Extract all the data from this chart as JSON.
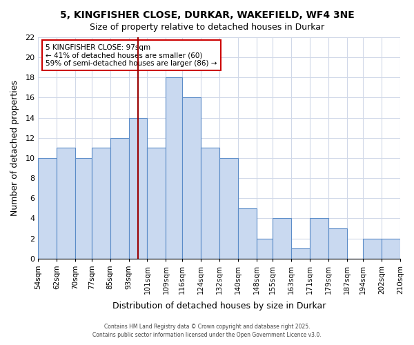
{
  "title_line1": "5, KINGFISHER CLOSE, DURKAR, WAKEFIELD, WF4 3NE",
  "title_line2": "Size of property relative to detached houses in Durkar",
  "xlabel": "Distribution of detached houses by size in Durkar",
  "ylabel": "Number of detached properties",
  "bin_labels": [
    "54sqm",
    "62sqm",
    "70sqm",
    "77sqm",
    "85sqm",
    "93sqm",
    "101sqm",
    "109sqm",
    "116sqm",
    "124sqm",
    "132sqm",
    "140sqm",
    "148sqm",
    "155sqm",
    "163sqm",
    "171sqm",
    "179sqm",
    "187sqm",
    "194sqm",
    "202sqm",
    "210sqm"
  ],
  "bin_edges": [
    54,
    62,
    70,
    77,
    85,
    93,
    101,
    109,
    116,
    124,
    132,
    140,
    148,
    155,
    163,
    171,
    179,
    187,
    194,
    202,
    210
  ],
  "bar_heights": [
    10,
    11,
    10,
    11,
    12,
    14,
    11,
    18,
    16,
    11,
    10,
    5,
    2,
    4,
    1,
    4,
    3,
    0,
    2,
    2
  ],
  "bar_color": "#c9d9f0",
  "bar_edge_color": "#5b8cc8",
  "grid_color": "#d0d8e8",
  "vline_x": 97,
  "vline_color": "#990000",
  "annotation_title": "5 KINGFISHER CLOSE: 97sqm",
  "annotation_line2": "← 41% of detached houses are smaller (60)",
  "annotation_line3": "59% of semi-detached houses are larger (86) →",
  "annotation_box_edge": "#cc0000",
  "ylim": [
    0,
    22
  ],
  "yticks": [
    0,
    2,
    4,
    6,
    8,
    10,
    12,
    14,
    16,
    18,
    20,
    22
  ],
  "footer1": "Contains HM Land Registry data © Crown copyright and database right 2025.",
  "footer2": "Contains public sector information licensed under the Open Government Licence v3.0."
}
